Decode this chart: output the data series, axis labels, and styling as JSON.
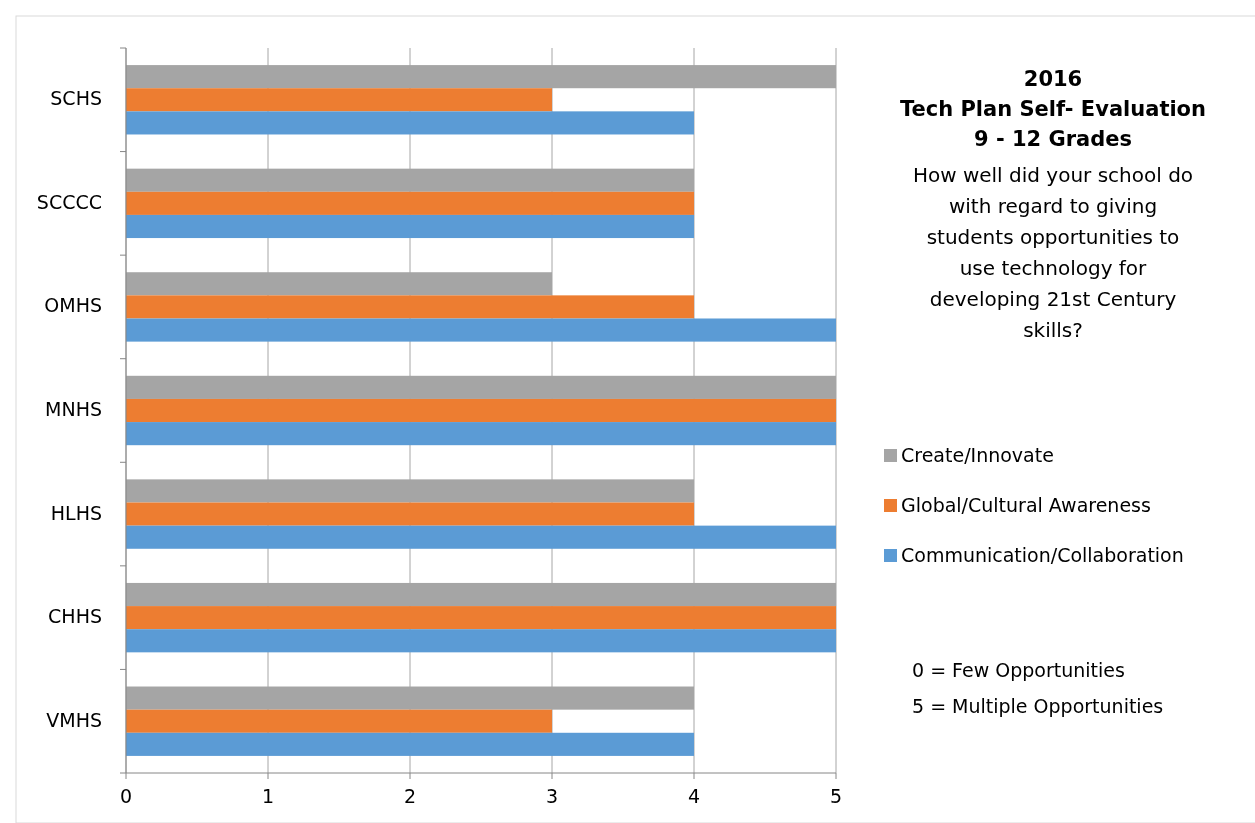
{
  "chart_data": {
    "type": "bar",
    "orientation": "horizontal",
    "title": "2016\nTech Plan Self- Evaluation\n9 - 12 Grades",
    "subtitle": "How well did your school do\nwith regard to giving\nstudents opportunities to\nuse technology for\ndeveloping 21st Century\nskills?",
    "categories": [
      "SCHS",
      "SCCCC",
      "OMHS",
      "MNHS",
      "HLHS",
      "CHHS",
      "VMHS"
    ],
    "series": [
      {
        "name": "Create/Innovate",
        "color": "#a5a5a5",
        "values": [
          5,
          4,
          3,
          5,
          4,
          5,
          4
        ]
      },
      {
        "name": "Global/Cultural Awareness",
        "color": "#ed7d31",
        "values": [
          3,
          4,
          4,
          5,
          4,
          5,
          3
        ]
      },
      {
        "name": "Communication/Collaboration",
        "color": "#5b9bd5",
        "values": [
          4,
          4,
          5,
          5,
          5,
          5,
          4
        ]
      }
    ],
    "xlim": [
      0,
      5
    ],
    "xticks": [
      0,
      1,
      2,
      3,
      4,
      5
    ],
    "grid": "x",
    "legend": "right",
    "annotations": [
      "0 = Few Opportunities",
      "5 = Multiple Opportunities"
    ]
  }
}
